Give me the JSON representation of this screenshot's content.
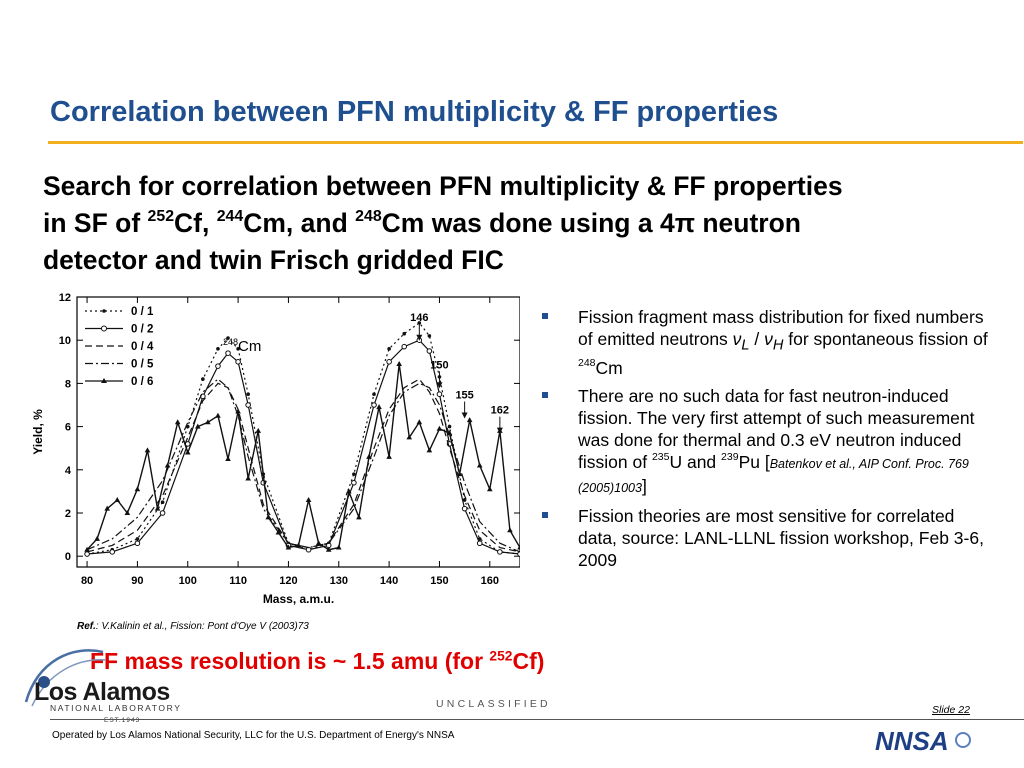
{
  "slide": {
    "title": "Correlation between PFN multiplicity & FF properties",
    "lead": {
      "line1": "Search for correlation between PFN multiplicity & FF properties",
      "line2_prefix": "in SF of ",
      "iso1_mass": "252",
      "iso1_sym": "Cf, ",
      "iso2_mass": "244",
      "iso2_sym": "Cm, and ",
      "iso3_mass": "248",
      "iso3_sym": "Cm was done using a 4π neutron",
      "line3": "detector and twin Frisch gridded FIC"
    },
    "reference": {
      "label": "Ref.",
      "text": ": V.Kalinin et al., Fission: Pont d'Oye V (2003)73"
    },
    "bullets": {
      "b1_text": "Fission fragment mass distribution for fixed numbers of emitted neutrons ",
      "b1_nu_l": "ν",
      "b1_sub_l": "L",
      "b1_slash": " / ",
      "b1_nu_h": "ν",
      "b1_sub_h": "H",
      "b1_text2": " for spontaneous fission of ",
      "b1_mass": "248",
      "b1_sym": "Cm",
      "b2_text": "There are no such data for fast neutron-induced fission. The very first attempt of such measurement was done for thermal and 0.3 eV neutron induced fission of ",
      "b2_mass1": "235",
      "b2_sym1": "U and ",
      "b2_mass2": "239",
      "b2_sym2": "Pu [",
      "b2_ref": "Batenkov et al., AIP Conf. Proc. 769 (2005)1003",
      "b2_close": "]",
      "b3_text": "Fission theories are most sensitive for correlated data, source: LANL-LLNL fission workshop, Feb 3-6, 2009"
    },
    "conclusion": {
      "text": "FF mass resolution is ~ 1.5 amu (for ",
      "mass": "252",
      "sym": "Cf)"
    },
    "footer": {
      "logo_main": "Los Alamos",
      "logo_sub": "NATIONAL LABORATORY",
      "logo_est": "EST.1943",
      "classification": "UNCLASSIFIED",
      "slide_number": "Slide 22",
      "operated_by": "Operated by Los Alamos National Security, LLC for the U.S. Department of Energy's NNSA",
      "nnsa_logo": "NNSA"
    },
    "colors": {
      "title": "#1f4f8f",
      "rule": "#f2b01e",
      "conclusion": "#e00000",
      "bullet": "#1f4f8f"
    }
  },
  "chart_data": {
    "type": "line",
    "xlabel": "Mass, a.m.u.",
    "ylabel": "Yield, %",
    "xlim": [
      78,
      166
    ],
    "ylim": [
      -0.5,
      12
    ],
    "xticks": [
      80,
      90,
      100,
      110,
      120,
      130,
      140,
      150,
      160
    ],
    "yticks": [
      0,
      2,
      4,
      6,
      8,
      10,
      12
    ],
    "annotation_isotope_mass": "248",
    "annotation_isotope_sym": "Cm",
    "peak_labels": [
      {
        "text": "146",
        "x": 146,
        "y": 10.9
      },
      {
        "text": "150",
        "x": 150,
        "y": 8.7
      },
      {
        "text": "155",
        "x": 155,
        "y": 7.3
      },
      {
        "text": "162",
        "x": 162,
        "y": 6.6
      }
    ],
    "legend": "top-left",
    "series": [
      {
        "name": "0 / 1",
        "style": "dotted",
        "marker": "dot",
        "x": [
          80,
          85,
          90,
          95,
          100,
          103,
          106,
          108,
          110,
          112,
          115,
          120,
          124,
          128,
          133,
          137,
          140,
          143,
          146,
          148,
          150,
          152,
          155,
          158,
          162,
          166
        ],
        "y": [
          0.1,
          0.3,
          0.8,
          2.5,
          6.0,
          8.2,
          9.6,
          10.1,
          9.6,
          7.5,
          3.8,
          0.6,
          0.3,
          0.6,
          3.8,
          7.5,
          9.6,
          10.3,
          10.8,
          10.2,
          8.3,
          6.0,
          2.6,
          0.8,
          0.2,
          0.1
        ]
      },
      {
        "name": "0 / 2",
        "style": "solid",
        "marker": "circle",
        "x": [
          80,
          85,
          90,
          95,
          100,
          103,
          106,
          108,
          110,
          112,
          115,
          120,
          124,
          128,
          133,
          137,
          140,
          143,
          146,
          148,
          150,
          152,
          155,
          158,
          162,
          166
        ],
        "y": [
          0.1,
          0.2,
          0.6,
          2.0,
          5.2,
          7.4,
          8.8,
          9.4,
          9.0,
          7.0,
          3.4,
          0.5,
          0.3,
          0.5,
          3.4,
          7.0,
          9.0,
          9.7,
          10.0,
          9.5,
          7.5,
          5.2,
          2.2,
          0.6,
          0.2,
          0.1
        ]
      },
      {
        "name": "0 / 4",
        "style": "dashed",
        "marker": "none",
        "x": [
          80,
          85,
          90,
          95,
          100,
          103,
          106,
          108,
          110,
          112,
          115,
          120,
          124,
          128,
          133,
          137,
          140,
          143,
          146,
          148,
          150,
          152,
          155,
          158,
          162,
          166
        ],
        "y": [
          0.2,
          0.5,
          1.2,
          2.8,
          5.5,
          7.2,
          8.0,
          7.8,
          6.8,
          5.0,
          2.4,
          0.6,
          0.4,
          0.6,
          2.4,
          5.0,
          6.8,
          7.8,
          8.2,
          7.6,
          6.6,
          5.0,
          2.8,
          1.2,
          0.4,
          0.2
        ]
      },
      {
        "name": "0 / 5",
        "style": "dashdot",
        "marker": "none",
        "x": [
          80,
          85,
          90,
          95,
          100,
          103,
          106,
          108,
          110,
          112,
          115,
          120,
          124,
          128,
          133,
          137,
          140,
          143,
          146,
          148,
          150,
          152,
          155,
          158,
          162,
          166
        ],
        "y": [
          0.3,
          0.8,
          1.8,
          3.5,
          6.2,
          7.6,
          8.2,
          7.8,
          6.5,
          4.6,
          2.2,
          0.6,
          0.4,
          0.6,
          2.2,
          4.6,
          6.5,
          7.6,
          8.0,
          7.8,
          7.0,
          5.6,
          3.4,
          1.6,
          0.6,
          0.2
        ]
      },
      {
        "name": "0 / 6",
        "style": "solid",
        "marker": "triangle",
        "x": [
          80,
          82,
          84,
          86,
          88,
          90,
          92,
          94,
          96,
          98,
          100,
          102,
          104,
          106,
          108,
          110,
          112,
          114,
          116,
          118,
          120,
          122,
          124,
          126,
          128,
          130,
          132,
          134,
          136,
          138,
          140,
          142,
          144,
          146,
          148,
          150,
          152,
          154,
          156,
          158,
          160,
          162,
          164,
          166
        ],
        "y": [
          0.3,
          0.8,
          2.2,
          2.6,
          2.0,
          3.1,
          4.9,
          2.2,
          4.2,
          6.2,
          4.8,
          6.0,
          6.2,
          6.5,
          4.5,
          6.7,
          3.6,
          5.8,
          1.8,
          1.1,
          0.4,
          0.5,
          2.6,
          0.6,
          0.3,
          0.4,
          3.0,
          1.8,
          4.6,
          6.9,
          4.6,
          8.9,
          5.5,
          6.2,
          4.9,
          5.9,
          5.7,
          3.8,
          6.3,
          4.2,
          3.1,
          5.8,
          1.2,
          0.4
        ]
      }
    ]
  }
}
